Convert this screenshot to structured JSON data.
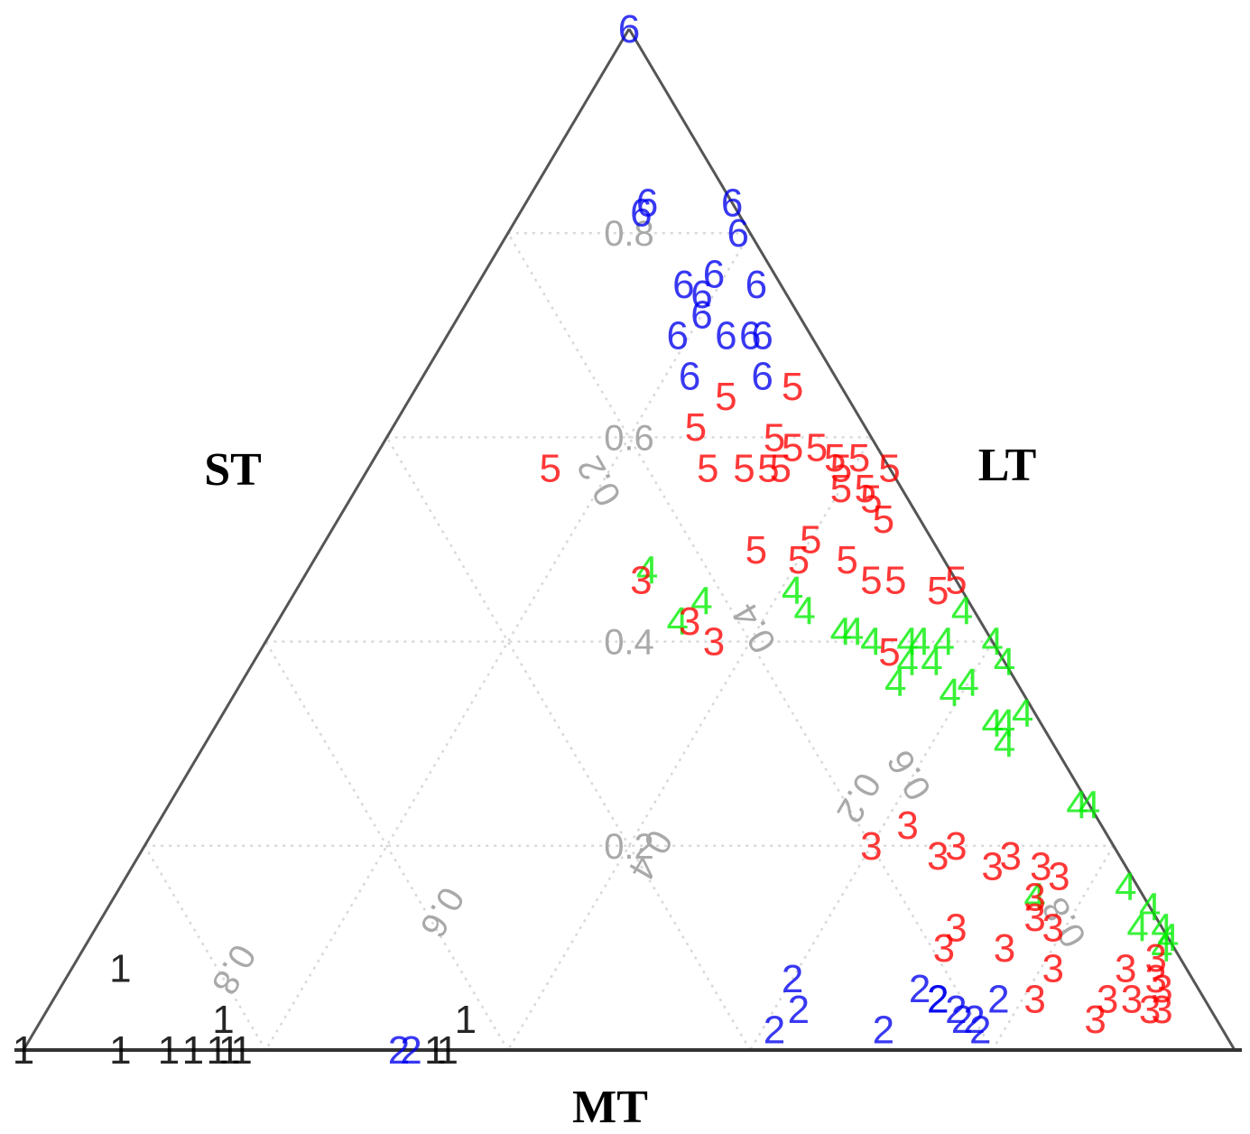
{
  "chart_data": {
    "type": "scatter",
    "subtype": "ternary",
    "axes": {
      "left": "ST",
      "right": "LT",
      "bottom": "MT"
    },
    "grid": true,
    "grid_ticks": [
      0.2,
      0.4,
      0.6,
      0.8
    ],
    "grid_tick_labels": [
      "0.2",
      "0.4",
      "0.6",
      "0.8"
    ],
    "group_colors": {
      "1": "#000000",
      "2": "#0000ee",
      "3": "#ff0000",
      "4": "#00ee00",
      "5": "#ff0000",
      "6": "#0000ee"
    },
    "points": [
      {
        "g": "6",
        "lt": 1.0,
        "st": 0.0
      },
      {
        "g": "6",
        "lt": 0.82,
        "st": 0.08
      },
      {
        "g": "6",
        "lt": 0.83,
        "st": 0.07
      },
      {
        "g": "6",
        "lt": 0.83,
        "st": 0.0
      },
      {
        "g": "6",
        "lt": 0.8,
        "st": 0.01
      },
      {
        "g": "6",
        "lt": 0.75,
        "st": 0.02
      },
      {
        "g": "6",
        "lt": 0.76,
        "st": 0.05
      },
      {
        "g": "6",
        "lt": 0.75,
        "st": 0.08
      },
      {
        "g": "6",
        "lt": 0.74,
        "st": 0.07
      },
      {
        "g": "6",
        "lt": 0.72,
        "st": 0.08
      },
      {
        "g": "6",
        "lt": 0.7,
        "st": 0.11
      },
      {
        "g": "6",
        "lt": 0.7,
        "st": 0.07
      },
      {
        "g": "6",
        "lt": 0.7,
        "st": 0.05
      },
      {
        "g": "6",
        "lt": 0.7,
        "st": 0.04
      },
      {
        "g": "6",
        "lt": 0.66,
        "st": 0.12
      },
      {
        "g": "6",
        "lt": 0.66,
        "st": 0.06
      },
      {
        "g": "5",
        "lt": 0.65,
        "st": 0.04
      },
      {
        "g": "5",
        "lt": 0.64,
        "st": 0.1
      },
      {
        "g": "5",
        "lt": 0.6,
        "st": 0.08
      },
      {
        "g": "5",
        "lt": 0.61,
        "st": 0.14
      },
      {
        "g": "5",
        "lt": 0.59,
        "st": 0.07
      },
      {
        "g": "5",
        "lt": 0.59,
        "st": 0.05
      },
      {
        "g": "5",
        "lt": 0.58,
        "st": 0.04
      },
      {
        "g": "5",
        "lt": 0.58,
        "st": 0.02
      },
      {
        "g": "5",
        "lt": 0.57,
        "st": 0.15
      },
      {
        "g": "5",
        "lt": 0.57,
        "st": 0.12
      },
      {
        "g": "5",
        "lt": 0.57,
        "st": 0.1
      },
      {
        "g": "5",
        "lt": 0.57,
        "st": 0.09
      },
      {
        "g": "5",
        "lt": 0.57,
        "st": 0.0
      },
      {
        "g": "5",
        "lt": 0.57,
        "st": 0.04
      },
      {
        "g": "5",
        "lt": 0.57,
        "st": 0.28
      },
      {
        "g": "5",
        "lt": 0.55,
        "st": 0.05
      },
      {
        "g": "5",
        "lt": 0.55,
        "st": 0.03
      },
      {
        "g": "5",
        "lt": 0.54,
        "st": 0.03
      },
      {
        "g": "5",
        "lt": 0.52,
        "st": 0.03
      },
      {
        "g": "5",
        "lt": 0.5,
        "st": 0.1
      },
      {
        "g": "5",
        "lt": 0.49,
        "st": 0.15
      },
      {
        "g": "5",
        "lt": 0.48,
        "st": 0.12
      },
      {
        "g": "5",
        "lt": 0.48,
        "st": 0.08
      },
      {
        "g": "5",
        "lt": 0.46,
        "st": 0.07
      },
      {
        "g": "5",
        "lt": 0.46,
        "st": 0.05
      },
      {
        "g": "5",
        "lt": 0.45,
        "st": 0.02
      },
      {
        "g": "5",
        "lt": 0.46,
        "st": 0.0
      },
      {
        "g": "5",
        "lt": 0.39,
        "st": 0.09
      },
      {
        "g": "4",
        "lt": 0.47,
        "st": 0.25
      },
      {
        "g": "4",
        "lt": 0.44,
        "st": 0.22
      },
      {
        "g": "4",
        "lt": 0.45,
        "st": 0.14
      },
      {
        "g": "4",
        "lt": 0.43,
        "st": 0.14
      },
      {
        "g": "4",
        "lt": 0.42,
        "st": 0.25
      },
      {
        "g": "4",
        "lt": 0.41,
        "st": 0.12
      },
      {
        "g": "4",
        "lt": 0.41,
        "st": 0.11
      },
      {
        "g": "4",
        "lt": 0.43,
        "st": 0.01
      },
      {
        "g": "4",
        "lt": 0.4,
        "st": 0.1
      },
      {
        "g": "4",
        "lt": 0.4,
        "st": 0.07
      },
      {
        "g": "4",
        "lt": 0.4,
        "st": 0.06
      },
      {
        "g": "4",
        "lt": 0.4,
        "st": 0.04
      },
      {
        "g": "4",
        "lt": 0.4,
        "st": 0.0
      },
      {
        "g": "4",
        "lt": 0.38,
        "st": 0.08
      },
      {
        "g": "4",
        "lt": 0.38,
        "st": 0.06
      },
      {
        "g": "4",
        "lt": 0.38,
        "st": 0.0
      },
      {
        "g": "4",
        "lt": 0.36,
        "st": 0.1
      },
      {
        "g": "4",
        "lt": 0.36,
        "st": 0.04
      },
      {
        "g": "4",
        "lt": 0.35,
        "st": 0.06
      },
      {
        "g": "4",
        "lt": 0.33,
        "st": 0.01
      },
      {
        "g": "4",
        "lt": 0.32,
        "st": 0.03
      },
      {
        "g": "4",
        "lt": 0.32,
        "st": 0.04
      },
      {
        "g": "4",
        "lt": 0.3,
        "st": 0.04
      },
      {
        "g": "4",
        "lt": 0.24,
        "st": 0.0
      },
      {
        "g": "4",
        "lt": 0.24,
        "st": 0.01
      },
      {
        "g": "4",
        "lt": 0.16,
        "st": 0.01
      },
      {
        "g": "4",
        "lt": 0.14,
        "st": 0.0
      },
      {
        "g": "4",
        "lt": 0.12,
        "st": 0.0
      },
      {
        "g": "4",
        "lt": 0.12,
        "st": 0.02
      },
      {
        "g": "4",
        "lt": 0.11,
        "st": 0.0
      },
      {
        "g": "4",
        "lt": 0.15,
        "st": 0.09
      },
      {
        "g": "4",
        "lt": 0.1,
        "st": 0.01
      },
      {
        "g": "3",
        "lt": 0.46,
        "st": 0.26
      },
      {
        "g": "3",
        "lt": 0.42,
        "st": 0.24
      },
      {
        "g": "3",
        "lt": 0.4,
        "st": 0.23
      },
      {
        "g": "3",
        "lt": 0.22,
        "st": 0.16
      },
      {
        "g": "3",
        "lt": 0.2,
        "st": 0.2
      },
      {
        "g": "3",
        "lt": 0.2,
        "st": 0.13
      },
      {
        "g": "3",
        "lt": 0.19,
        "st": 0.15
      },
      {
        "g": "3",
        "lt": 0.19,
        "st": 0.09
      },
      {
        "g": "3",
        "lt": 0.18,
        "st": 0.07
      },
      {
        "g": "3",
        "lt": 0.18,
        "st": 0.11
      },
      {
        "g": "3",
        "lt": 0.17,
        "st": 0.06
      },
      {
        "g": "3",
        "lt": 0.15,
        "st": 0.09
      },
      {
        "g": "3",
        "lt": 0.13,
        "st": 0.1
      },
      {
        "g": "3",
        "lt": 0.12,
        "st": 0.09
      },
      {
        "g": "3",
        "lt": 0.12,
        "st": 0.17
      },
      {
        "g": "3",
        "lt": 0.1,
        "st": 0.14
      },
      {
        "g": "3",
        "lt": 0.1,
        "st": 0.19
      },
      {
        "g": "3",
        "lt": 0.09,
        "st": 0.02
      },
      {
        "g": "3",
        "lt": 0.08,
        "st": 0.11
      },
      {
        "g": "3",
        "lt": 0.08,
        "st": 0.05
      },
      {
        "g": "3",
        "lt": 0.06,
        "st": 0.03
      },
      {
        "g": "3",
        "lt": 0.05,
        "st": 0.14
      },
      {
        "g": "3",
        "lt": 0.07,
        "st": 0.03
      },
      {
        "g": "3",
        "lt": 0.05,
        "st": 0.06
      },
      {
        "g": "3",
        "lt": 0.05,
        "st": 0.08
      },
      {
        "g": "3",
        "lt": 0.04,
        "st": 0.04
      },
      {
        "g": "3",
        "lt": 0.03,
        "st": 0.1
      },
      {
        "g": "3",
        "lt": 0.04,
        "st": 0.05
      },
      {
        "g": "2",
        "lt": 0.07,
        "st": 0.33
      },
      {
        "g": "2",
        "lt": 0.04,
        "st": 0.34
      },
      {
        "g": "2",
        "lt": 0.06,
        "st": 0.23
      },
      {
        "g": "2",
        "lt": 0.05,
        "st": 0.22
      },
      {
        "g": "2",
        "lt": 0.05,
        "st": 0.22
      },
      {
        "g": "2",
        "lt": 0.04,
        "st": 0.21
      },
      {
        "g": "2",
        "lt": 0.05,
        "st": 0.17
      },
      {
        "g": "2",
        "lt": 0.03,
        "st": 0.2
      },
      {
        "g": "2",
        "lt": 0.03,
        "st": 0.21
      },
      {
        "g": "2",
        "lt": 0.02,
        "st": 0.37
      },
      {
        "g": "2",
        "lt": 0.02,
        "st": 0.28
      },
      {
        "g": "2",
        "lt": 0.02,
        "st": 0.2
      },
      {
        "g": "2",
        "lt": 0.0,
        "st": 0.69
      },
      {
        "g": "2",
        "lt": 0.0,
        "st": 0.68
      },
      {
        "g": "1",
        "lt": 0.08,
        "st": 0.88
      },
      {
        "g": "1",
        "lt": 0.03,
        "st": 0.82
      },
      {
        "g": "1",
        "lt": 0.03,
        "st": 0.62
      },
      {
        "g": "1",
        "lt": 0.0,
        "st": 1.0
      },
      {
        "g": "1",
        "lt": 0.0,
        "st": 0.92
      },
      {
        "g": "1",
        "lt": 0.0,
        "st": 0.88
      },
      {
        "g": "1",
        "lt": 0.0,
        "st": 0.86
      },
      {
        "g": "1",
        "lt": 0.0,
        "st": 0.84
      },
      {
        "g": "1",
        "lt": 0.0,
        "st": 0.83
      },
      {
        "g": "1",
        "lt": 0.0,
        "st": 0.82
      },
      {
        "g": "1",
        "lt": 0.0,
        "st": 0.66
      },
      {
        "g": "1",
        "lt": 0.0,
        "st": 0.65
      }
    ]
  }
}
